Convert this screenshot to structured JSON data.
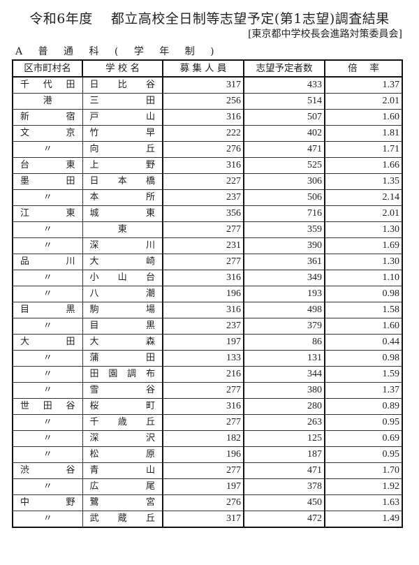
{
  "title": "令和6年度　 都立高校全日制等志望予定(第1志望)調査結果",
  "organization": "[東京都中学校長会進路対策委員会]",
  "section": "A 普 通 科 ( 学 年 制 )",
  "headers": [
    "区市町村名",
    "学 校 名",
    "募 集 人 員",
    "志望予定者数",
    "倍　 率"
  ],
  "rows": [
    [
      "千代田",
      "日比谷",
      "317",
      "433",
      "1.37"
    ],
    [
      "港",
      "三田",
      "256",
      "514",
      "2.01"
    ],
    [
      "新宿",
      "戸山",
      "316",
      "507",
      "1.60"
    ],
    [
      "文京",
      "竹早",
      "222",
      "402",
      "1.81"
    ],
    [
      "〃",
      "向丘",
      "276",
      "471",
      "1.71"
    ],
    [
      "台東",
      "上野",
      "316",
      "525",
      "1.66"
    ],
    [
      "墨田",
      "日本橋",
      "227",
      "306",
      "1.35"
    ],
    [
      "〃",
      "本所",
      "237",
      "506",
      "2.14"
    ],
    [
      "江東",
      "城東",
      "356",
      "716",
      "2.01"
    ],
    [
      "〃",
      "東",
      "277",
      "359",
      "1.30"
    ],
    [
      "〃",
      "深川",
      "231",
      "390",
      "1.69"
    ],
    [
      "品川",
      "大崎",
      "277",
      "361",
      "1.30"
    ],
    [
      "〃",
      "小山台",
      "316",
      "349",
      "1.10"
    ],
    [
      "〃",
      "八潮",
      "196",
      "193",
      "0.98"
    ],
    [
      "目黒",
      "駒場",
      "316",
      "498",
      "1.58"
    ],
    [
      "〃",
      "目黒",
      "237",
      "379",
      "1.60"
    ],
    [
      "大田",
      "大森",
      "197",
      "86",
      "0.44"
    ],
    [
      "〃",
      "蒲田",
      "133",
      "131",
      "0.98"
    ],
    [
      "〃",
      "田園調布",
      "216",
      "344",
      "1.59"
    ],
    [
      "〃",
      "雪谷",
      "277",
      "380",
      "1.37"
    ],
    [
      "世田谷",
      "桜町",
      "316",
      "280",
      "0.89"
    ],
    [
      "〃",
      "千歳丘",
      "277",
      "263",
      "0.95"
    ],
    [
      "〃",
      "深沢",
      "182",
      "125",
      "0.69"
    ],
    [
      "〃",
      "松原",
      "196",
      "187",
      "0.95"
    ],
    [
      "渋谷",
      "青山",
      "277",
      "471",
      "1.70"
    ],
    [
      "〃",
      "広尾",
      "197",
      "378",
      "1.92"
    ],
    [
      "中野",
      "鷺宮",
      "276",
      "450",
      "1.63"
    ],
    [
      "〃",
      "武蔵丘",
      "317",
      "472",
      "1.49"
    ]
  ]
}
